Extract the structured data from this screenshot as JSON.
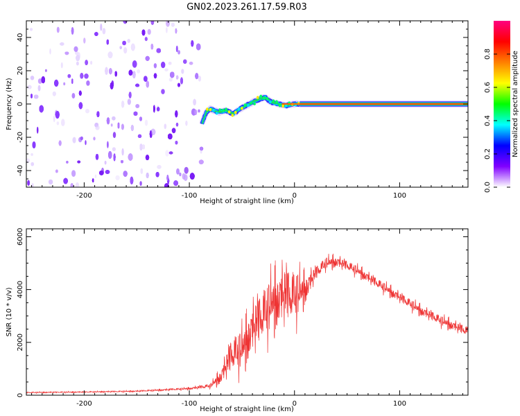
{
  "title": "GN02.2023.261.17.59.R03",
  "chart_data": [
    {
      "type": "heatmap",
      "xlabel": "Height of straight line (km)",
      "ylabel": "Frequency (Hz)",
      "xlim": [
        -255,
        165
      ],
      "ylim": [
        -50,
        50
      ],
      "x_ticks": [
        -200,
        -100,
        0,
        100
      ],
      "y_ticks": [
        -40,
        -20,
        0,
        20,
        40
      ],
      "noise_region_x": [
        -255,
        -88
      ],
      "noise_band_hz": [
        -50,
        50
      ],
      "wavy_region_x": [
        -88,
        5
      ],
      "wavy_track": [
        [
          -88,
          -12
        ],
        [
          -84,
          -5
        ],
        [
          -80,
          -3
        ],
        [
          -72,
          -5
        ],
        [
          -65,
          -4
        ],
        [
          -58,
          -6
        ],
        [
          -52,
          -3
        ],
        [
          -46,
          -1
        ],
        [
          -40,
          1
        ],
        [
          -33,
          3
        ],
        [
          -28,
          4
        ],
        [
          -22,
          1
        ],
        [
          -15,
          0
        ],
        [
          -8,
          -1
        ],
        [
          0,
          0
        ],
        [
          5,
          0
        ]
      ],
      "steady_line_x": [
        5,
        165
      ],
      "steady_line_hz": 0,
      "grid": false,
      "colorbar": {
        "label": "Normalized spectral amplitude",
        "range": [
          0,
          1
        ],
        "ticks": [
          "0.0",
          "0.2",
          "0.4",
          "0.6",
          "0.8"
        ],
        "tick_values": [
          0.0,
          0.2,
          0.4,
          0.6,
          0.8
        ],
        "colors": [
          "#ffffff",
          "#8000ff",
          "#0000ff",
          "#00ffff",
          "#00ff00",
          "#ffff00",
          "#ff8000",
          "#ff0000",
          "#ff0080"
        ]
      }
    },
    {
      "type": "line",
      "xlabel": "Height of straight line (km)",
      "ylabel": "SNR (10 * v/v)",
      "xlim": [
        -255,
        165
      ],
      "ylim": [
        0,
        6300
      ],
      "x_ticks": [
        -200,
        -100,
        0,
        100
      ],
      "y_ticks": [
        0,
        2000,
        4000,
        6000
      ],
      "color": "#ee3333",
      "grid": false,
      "series": [
        {
          "x": [
            -255,
            -200,
            -150,
            -100,
            -80,
            -70,
            -60,
            -50,
            -40,
            -30,
            -20,
            -10,
            0,
            10,
            20,
            30,
            40,
            50,
            60,
            80,
            100,
            120,
            140,
            165
          ],
          "y": [
            100,
            120,
            150,
            250,
            350,
            700,
            1500,
            1700,
            2500,
            3000,
            3500,
            3800,
            3700,
            4000,
            4600,
            5000,
            5050,
            4900,
            4700,
            4200,
            3700,
            3200,
            2800,
            2400
          ],
          "spread": [
            40,
            40,
            50,
            80,
            150,
            500,
            1200,
            1400,
            1700,
            1800,
            1900,
            2000,
            1800,
            1000,
            500,
            400,
            400,
            350,
            350,
            350,
            350,
            350,
            350,
            350
          ]
        }
      ]
    }
  ]
}
